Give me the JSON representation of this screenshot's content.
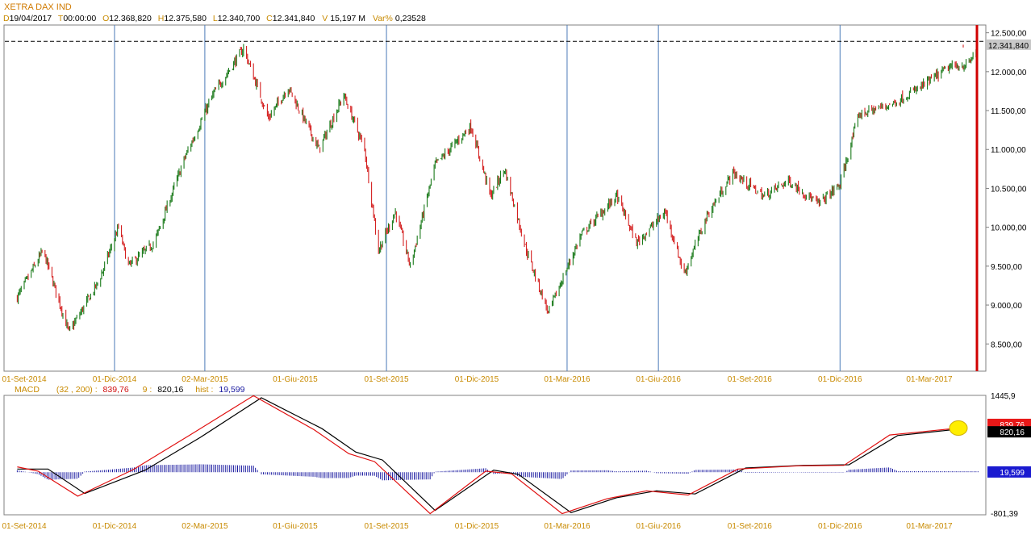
{
  "header": {
    "title": "XETRA DAX IND",
    "fields": [
      {
        "key": "D",
        "value": "19/04/2017"
      },
      {
        "key": "T",
        "value": "00:00:00"
      },
      {
        "key": "O",
        "value": "12.368,820"
      },
      {
        "key": "H",
        "value": "12.375,580"
      },
      {
        "key": "L",
        "value": "12.340,700"
      },
      {
        "key": "C",
        "value": "12.341,840"
      },
      {
        "key": "V",
        "value": "15,197 M"
      },
      {
        "key": "Var%",
        "value": "0,23528"
      }
    ]
  },
  "macd_header": {
    "label": "MACD",
    "params": "(32 , 200) :",
    "macd_value": "839,76",
    "signal_label": "9 :",
    "signal_value": "820,16",
    "hist_label": "hist :",
    "hist_value": "19,599"
  },
  "colors": {
    "up": "#1a7a1a",
    "down": "#d42020",
    "macd_line": "#e01010",
    "signal_line": "#000000",
    "histogram": "#1a1aa0",
    "date_label": "#c88a00",
    "divider": "#4a7ab8",
    "right_marker": "#d00000",
    "highlight": "#ffee00"
  },
  "chart_data": [
    {
      "type": "candlestick",
      "title": "XETRA DAX IND",
      "x_labels": [
        "01-Set-2014",
        "01-Dic-2014",
        "02-Mar-2015",
        "01-Giu-2015",
        "01-Set-2015",
        "01-Dic-2015",
        "01-Mar-2016",
        "01-Giu-2016",
        "01-Set-2016",
        "01-Dic-2016",
        "01-Mar-2017"
      ],
      "y_ticks": [
        "12.500,00",
        "12.000,00",
        "11.500,00",
        "11.000,00",
        "10.500,00",
        "10.000,00",
        "9.500,00",
        "9.000,00",
        "8.500,00"
      ],
      "y_tick_values": [
        12500,
        12000,
        11500,
        11000,
        10500,
        10000,
        9500,
        9000,
        8500
      ],
      "ylim": [
        8150,
        12600
      ],
      "reference_line": 12390,
      "last_value": 12341.84,
      "last_value_label": "12.341,840",
      "period_dividers": [
        "01-Dic-2014",
        "02-Mar-2015",
        "01-Set-2015",
        "01-Mar-2016",
        "01-Giu-2016",
        "01-Dic-2016"
      ],
      "close_path": [
        [
          "2014-08-25",
          9100
        ],
        [
          "2014-09-20",
          9700
        ],
        [
          "2014-10-16",
          8650
        ],
        [
          "2014-11-15",
          9300
        ],
        [
          "2014-12-05",
          10000
        ],
        [
          "2014-12-15",
          9500
        ],
        [
          "2015-01-10",
          9800
        ],
        [
          "2015-02-10",
          10900
        ],
        [
          "2015-03-10",
          11700
        ],
        [
          "2015-04-10",
          12300
        ],
        [
          "2015-05-05",
          11400
        ],
        [
          "2015-05-25",
          11800
        ],
        [
          "2015-06-25",
          11000
        ],
        [
          "2015-07-20",
          11700
        ],
        [
          "2015-08-10",
          11000
        ],
        [
          "2015-08-24",
          9700
        ],
        [
          "2015-09-10",
          10200
        ],
        [
          "2015-09-25",
          9500
        ],
        [
          "2015-10-20",
          10800
        ],
        [
          "2015-11-25",
          11300
        ],
        [
          "2015-12-15",
          10400
        ],
        [
          "2015-12-29",
          10750
        ],
        [
          "2016-01-20",
          9700
        ],
        [
          "2016-02-11",
          8900
        ],
        [
          "2016-03-15",
          9900
        ],
        [
          "2016-04-20",
          10400
        ],
        [
          "2016-05-10",
          9800
        ],
        [
          "2016-06-08",
          10200
        ],
        [
          "2016-06-27",
          9400
        ],
        [
          "2016-07-20",
          10150
        ],
        [
          "2016-08-15",
          10700
        ],
        [
          "2016-09-15",
          10400
        ],
        [
          "2016-10-10",
          10600
        ],
        [
          "2016-11-09",
          10300
        ],
        [
          "2016-12-01",
          10550
        ],
        [
          "2016-12-20",
          11450
        ],
        [
          "2017-01-25",
          11600
        ],
        [
          "2017-02-20",
          11800
        ],
        [
          "2017-03-20",
          12050
        ],
        [
          "2017-04-10",
          12100
        ],
        [
          "2017-04-19",
          12341.84
        ]
      ]
    },
    {
      "type": "line",
      "title": "MACD (32 , 200)",
      "ylim": [
        -801.39,
        1445.9
      ],
      "y_labels": [
        "1445,9",
        "-801,39"
      ],
      "series": [
        {
          "name": "MACD",
          "last_label": "839,76",
          "points": [
            [
              "2014-08-25",
              100
            ],
            [
              "2014-09-15",
              20
            ],
            [
              "2014-10-25",
              -450
            ],
            [
              "2014-12-20",
              50
            ],
            [
              "2015-02-15",
              700
            ],
            [
              "2015-04-20",
              1440
            ],
            [
              "2015-06-20",
              800
            ],
            [
              "2015-07-25",
              350
            ],
            [
              "2015-08-20",
              200
            ],
            [
              "2015-10-15",
              -780
            ],
            [
              "2015-12-10",
              20
            ],
            [
              "2016-01-05",
              -30
            ],
            [
              "2016-02-25",
              -780
            ],
            [
              "2016-04-10",
              -500
            ],
            [
              "2016-05-20",
              -350
            ],
            [
              "2016-07-01",
              -430
            ],
            [
              "2016-08-20",
              60
            ],
            [
              "2016-10-20",
              120
            ],
            [
              "2016-12-05",
              130
            ],
            [
              "2017-01-20",
              700
            ],
            [
              "2017-04-19",
              839.76
            ]
          ]
        },
        {
          "name": "Signal",
          "last_label": "820,16",
          "points": [
            [
              "2014-08-25",
              60
            ],
            [
              "2014-09-25",
              60
            ],
            [
              "2014-11-01",
              -400
            ],
            [
              "2015-01-01",
              40
            ],
            [
              "2015-02-25",
              650
            ],
            [
              "2015-04-28",
              1400
            ],
            [
              "2015-06-28",
              820
            ],
            [
              "2015-08-01",
              380
            ],
            [
              "2015-08-28",
              230
            ],
            [
              "2015-10-20",
              -720
            ],
            [
              "2015-12-18",
              40
            ],
            [
              "2016-01-12",
              -40
            ],
            [
              "2016-03-05",
              -760
            ],
            [
              "2016-04-20",
              -480
            ],
            [
              "2016-05-30",
              -350
            ],
            [
              "2016-07-08",
              -410
            ],
            [
              "2016-08-28",
              80
            ],
            [
              "2016-10-25",
              130
            ],
            [
              "2016-12-10",
              140
            ],
            [
              "2017-01-28",
              690
            ],
            [
              "2017-04-19",
              820.16
            ]
          ]
        },
        {
          "name": "hist",
          "last_label": "19,599"
        }
      ]
    }
  ]
}
